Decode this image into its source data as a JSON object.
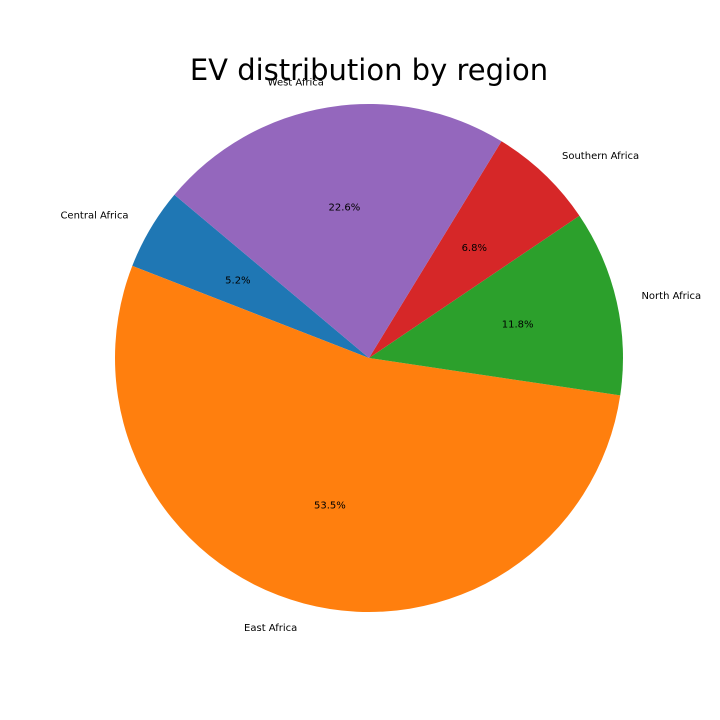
{
  "chart_data": {
    "type": "pie",
    "title": "EV distribution by region",
    "categories": [
      "Central Africa",
      "East Africa",
      "North Africa",
      "Southern Africa",
      "West Africa"
    ],
    "values": [
      5.2,
      53.5,
      11.8,
      6.8,
      22.6
    ],
    "percent_labels": [
      "5.2%",
      "53.5%",
      "11.8%",
      "6.8%",
      "22.6%"
    ],
    "colors": [
      "#1f77b4",
      "#ff7f0e",
      "#2ca02c",
      "#d62728",
      "#9467bd"
    ],
    "start_angle_deg": 140,
    "direction": "counterclockwise",
    "legend": "none"
  }
}
